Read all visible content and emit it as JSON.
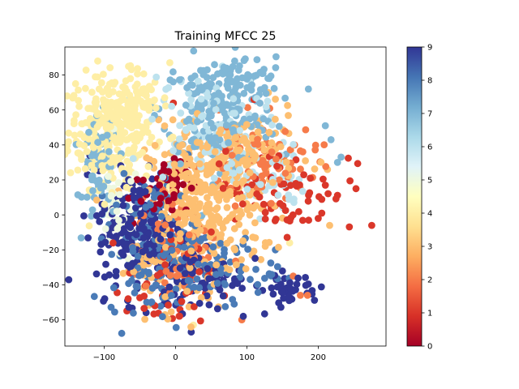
{
  "chart_data": {
    "type": "scatter",
    "title": "Training MFCC 25",
    "xlabel": "",
    "ylabel": "",
    "xlim": [
      -155,
      295
    ],
    "ylim": [
      -75,
      96
    ],
    "x_ticks": [
      -100,
      0,
      100,
      200
    ],
    "x_tick_labels": [
      "−100",
      "0",
      "100",
      "200"
    ],
    "y_ticks": [
      -60,
      -40,
      -20,
      0,
      20,
      40,
      60,
      80
    ],
    "y_tick_labels": [
      "−60",
      "−40",
      "−20",
      "0",
      "20",
      "40",
      "60",
      "80"
    ],
    "grid": false,
    "legend": "none",
    "colorbar": {
      "cmap": "RdYlBu",
      "vmin": 0,
      "vmax": 9,
      "ticks": [
        0,
        1,
        2,
        3,
        4,
        5,
        6,
        7,
        8,
        9
      ],
      "tick_labels": [
        "0",
        "1",
        "2",
        "3",
        "4",
        "5",
        "6",
        "7",
        "8",
        "9"
      ],
      "colors": [
        "#a50026",
        "#d73027",
        "#f46d43",
        "#fdae61",
        "#fee090",
        "#ffffbf",
        "#e0f3f8",
        "#abd9e9",
        "#74add1",
        "#4575b4",
        "#313695"
      ]
    },
    "clusters": [
      {
        "class": 4,
        "center": [
          -90,
          48
        ],
        "spread": [
          30,
          16
        ],
        "count": 300
      },
      {
        "class": 4,
        "center": [
          -60,
          65
        ],
        "spread": [
          25,
          8
        ],
        "count": 60
      },
      {
        "class": 5,
        "center": [
          -80,
          0
        ],
        "spread": [
          15,
          15
        ],
        "count": 40
      },
      {
        "class": 7,
        "center": [
          -105,
          25
        ],
        "spread": [
          12,
          15
        ],
        "count": 70
      },
      {
        "class": 7,
        "center": [
          60,
          60
        ],
        "spread": [
          40,
          15
        ],
        "count": 200
      },
      {
        "class": 7,
        "center": [
          100,
          78
        ],
        "spread": [
          25,
          6
        ],
        "count": 35
      },
      {
        "class": 6,
        "center": [
          40,
          50
        ],
        "spread": [
          40,
          15
        ],
        "count": 100
      },
      {
        "class": 6,
        "center": [
          130,
          20
        ],
        "spread": [
          25,
          10
        ],
        "count": 50
      },
      {
        "class": 3,
        "center": [
          40,
          5
        ],
        "spread": [
          40,
          22
        ],
        "count": 350
      },
      {
        "class": 3,
        "center": [
          100,
          35
        ],
        "spread": [
          35,
          12
        ],
        "count": 120
      },
      {
        "class": 2,
        "center": [
          120,
          30
        ],
        "spread": [
          40,
          12
        ],
        "count": 80
      },
      {
        "class": 1,
        "center": [
          150,
          15
        ],
        "spread": [
          50,
          12
        ],
        "count": 70
      },
      {
        "class": 0,
        "center": [
          -10,
          20
        ],
        "spread": [
          15,
          8
        ],
        "count": 40
      },
      {
        "class": 0,
        "center": [
          -30,
          10
        ],
        "spread": [
          20,
          8
        ],
        "count": 20
      },
      {
        "class": 1,
        "center": [
          -10,
          -40
        ],
        "spread": [
          30,
          15
        ],
        "count": 50
      },
      {
        "class": 9,
        "center": [
          -50,
          -10
        ],
        "spread": [
          30,
          18
        ],
        "count": 200
      },
      {
        "class": 9,
        "center": [
          40,
          -35
        ],
        "spread": [
          30,
          10
        ],
        "count": 80
      },
      {
        "class": 9,
        "center": [
          160,
          -42
        ],
        "spread": [
          20,
          4
        ],
        "count": 40
      },
      {
        "class": 8,
        "center": [
          -30,
          -20
        ],
        "spread": [
          30,
          20
        ],
        "count": 150
      },
      {
        "class": 8,
        "center": [
          60,
          -30
        ],
        "spread": [
          40,
          10
        ],
        "count": 60
      },
      {
        "class": 2,
        "center": [
          0,
          -20
        ],
        "spread": [
          30,
          15
        ],
        "count": 60
      },
      {
        "class": 3,
        "center": [
          -40,
          -30
        ],
        "spread": [
          15,
          10
        ],
        "count": 30
      }
    ],
    "points": [
      {
        "x": 275,
        "y": -6,
        "class": 1
      },
      {
        "x": 253,
        "y": 15,
        "class": 1
      },
      {
        "x": 227,
        "y": 30,
        "class": 7
      },
      {
        "x": 216,
        "y": -6,
        "class": 3
      },
      {
        "x": 218,
        "y": 43,
        "class": 7
      },
      {
        "x": 210,
        "y": 51,
        "class": 7
      },
      {
        "x": 232,
        "y": 33,
        "class": 7
      },
      {
        "x": 213,
        "y": 26,
        "class": 3
      },
      {
        "x": 210,
        "y": 17,
        "class": 1
      },
      {
        "x": 205,
        "y": 1,
        "class": 1
      },
      {
        "x": 200,
        "y": -2,
        "class": 1
      },
      {
        "x": 175,
        "y": -46,
        "class": 2
      },
      {
        "x": 185,
        "y": -46,
        "class": 2
      },
      {
        "x": 95,
        "y": -58,
        "class": 9
      },
      {
        "x": 93,
        "y": -60,
        "class": 2
      },
      {
        "x": 22,
        "y": -67,
        "class": 9
      },
      {
        "x": 25,
        "y": -63,
        "class": 4
      },
      {
        "x": -140,
        "y": 75,
        "class": 4
      },
      {
        "x": -135,
        "y": 62,
        "class": 4
      },
      {
        "x": -120,
        "y": 34,
        "class": 9
      },
      {
        "x": -8,
        "y": 87,
        "class": 4
      },
      {
        "x": 83,
        "y": 88,
        "class": 7
      },
      {
        "x": 110,
        "y": 66,
        "class": 1
      },
      {
        "x": -3,
        "y": 64,
        "class": 1
      },
      {
        "x": 165,
        "y": -35,
        "class": 2
      },
      {
        "x": 140,
        "y": -20,
        "class": 8
      },
      {
        "x": 160,
        "y": -16,
        "class": 4
      }
    ]
  }
}
